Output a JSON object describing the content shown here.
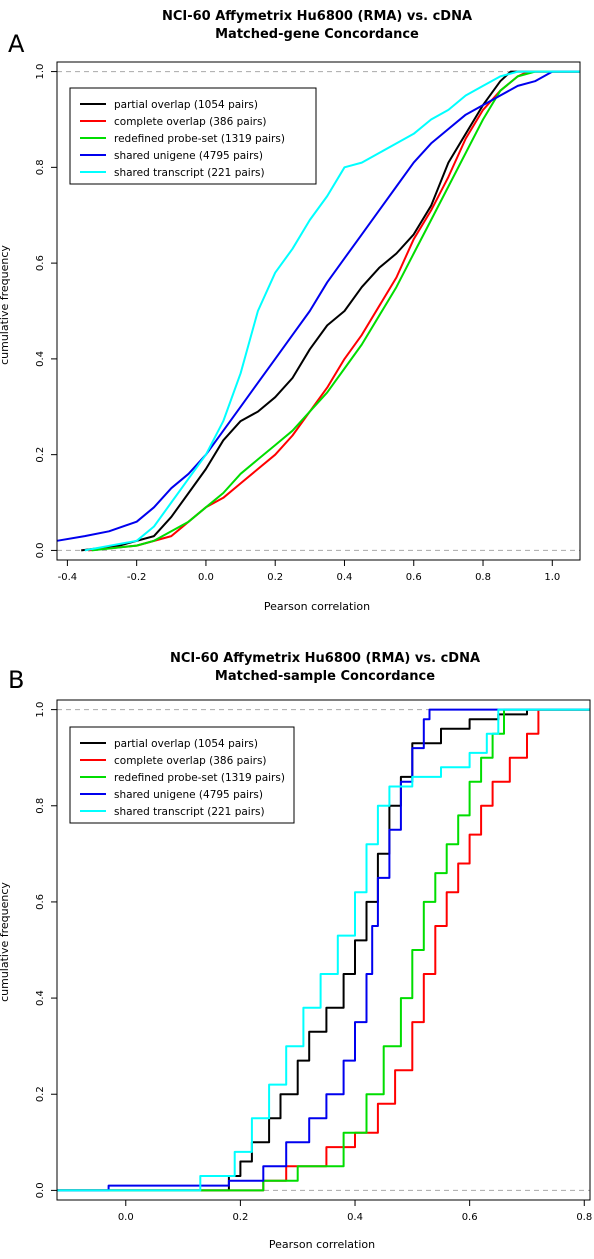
{
  "chart_data": [
    {
      "type": "line",
      "panel_letter": "A",
      "title": "NCI-60 Affymetrix Hu6800 (RMA) vs. cDNA",
      "subtitle": "Matched-gene Concordance",
      "xlabel": "Pearson correlation",
      "ylabel": "cumulative frequency",
      "xlim": [
        -0.43,
        1.08
      ],
      "ylim": [
        -0.02,
        1.02
      ],
      "x_ticks": [
        -0.4,
        -0.2,
        0.0,
        0.2,
        0.4,
        0.6,
        0.8,
        1.0
      ],
      "x_tick_labels": [
        "-0.4",
        "-0.2",
        "0.0",
        "0.2",
        "0.4",
        "0.6",
        "0.8",
        "1.0"
      ],
      "y_ticks": [
        0.0,
        0.2,
        0.4,
        0.6,
        0.8,
        1.0
      ],
      "y_tick_labels": [
        "0.0",
        "0.2",
        "0.4",
        "0.6",
        "0.8",
        "1.0"
      ],
      "reference_lines": [
        0,
        1
      ],
      "legend_position": "top-left",
      "series": [
        {
          "name": "partial overlap (1054 pairs)",
          "color": "#000000",
          "step": false,
          "x": [
            -0.36,
            -0.25,
            -0.15,
            -0.1,
            -0.05,
            0.0,
            0.05,
            0.1,
            0.15,
            0.2,
            0.25,
            0.3,
            0.35,
            0.4,
            0.45,
            0.5,
            0.55,
            0.6,
            0.65,
            0.7,
            0.75,
            0.8,
            0.85,
            0.88,
            1.08
          ],
          "y": [
            0.0,
            0.01,
            0.03,
            0.07,
            0.12,
            0.17,
            0.23,
            0.27,
            0.29,
            0.32,
            0.36,
            0.42,
            0.47,
            0.5,
            0.55,
            0.59,
            0.62,
            0.66,
            0.72,
            0.81,
            0.87,
            0.93,
            0.98,
            1.0,
            1.0
          ]
        },
        {
          "name": "complete overlap (386 pairs)",
          "color": "#ff0000",
          "step": false,
          "x": [
            -0.34,
            -0.2,
            -0.1,
            -0.05,
            0.0,
            0.05,
            0.1,
            0.15,
            0.2,
            0.25,
            0.3,
            0.35,
            0.4,
            0.45,
            0.5,
            0.55,
            0.6,
            0.65,
            0.7,
            0.75,
            0.8,
            0.85,
            0.9,
            0.93,
            1.08
          ],
          "y": [
            0.0,
            0.01,
            0.03,
            0.06,
            0.09,
            0.11,
            0.14,
            0.17,
            0.2,
            0.24,
            0.29,
            0.34,
            0.4,
            0.45,
            0.51,
            0.57,
            0.65,
            0.71,
            0.78,
            0.86,
            0.92,
            0.96,
            0.99,
            1.0,
            1.0
          ]
        },
        {
          "name": "redefined probe-set (1319 pairs)",
          "color": "#00dd00",
          "step": false,
          "x": [
            -0.33,
            -0.2,
            -0.15,
            -0.1,
            -0.05,
            0.0,
            0.05,
            0.1,
            0.15,
            0.2,
            0.25,
            0.3,
            0.35,
            0.4,
            0.45,
            0.5,
            0.55,
            0.6,
            0.65,
            0.7,
            0.75,
            0.8,
            0.85,
            0.9,
            0.95,
            1.08
          ],
          "y": [
            0.0,
            0.01,
            0.02,
            0.04,
            0.06,
            0.09,
            0.12,
            0.16,
            0.19,
            0.22,
            0.25,
            0.29,
            0.33,
            0.38,
            0.43,
            0.49,
            0.55,
            0.62,
            0.69,
            0.76,
            0.83,
            0.9,
            0.96,
            0.99,
            1.0,
            1.0
          ]
        },
        {
          "name": "shared unigene (4795 pairs)",
          "color": "#0000ee",
          "step": false,
          "x": [
            -0.43,
            -0.35,
            -0.28,
            -0.2,
            -0.15,
            -0.1,
            -0.05,
            0.0,
            0.05,
            0.1,
            0.15,
            0.2,
            0.25,
            0.3,
            0.35,
            0.4,
            0.45,
            0.5,
            0.55,
            0.6,
            0.65,
            0.7,
            0.75,
            0.8,
            0.85,
            0.9,
            0.95,
            1.0,
            1.08
          ],
          "y": [
            0.02,
            0.03,
            0.04,
            0.06,
            0.09,
            0.13,
            0.16,
            0.2,
            0.25,
            0.3,
            0.35,
            0.4,
            0.45,
            0.5,
            0.56,
            0.61,
            0.66,
            0.71,
            0.76,
            0.81,
            0.85,
            0.88,
            0.91,
            0.93,
            0.95,
            0.97,
            0.98,
            1.0,
            1.0
          ]
        },
        {
          "name": "shared transcript  (221 pairs)",
          "color": "#00ffff",
          "step": false,
          "x": [
            -0.35,
            -0.2,
            -0.15,
            -0.1,
            -0.05,
            0.0,
            0.05,
            0.1,
            0.15,
            0.2,
            0.25,
            0.3,
            0.35,
            0.4,
            0.45,
            0.5,
            0.55,
            0.6,
            0.65,
            0.7,
            0.75,
            0.8,
            0.85,
            0.9,
            1.08
          ],
          "y": [
            0.0,
            0.02,
            0.05,
            0.1,
            0.15,
            0.2,
            0.27,
            0.37,
            0.5,
            0.58,
            0.63,
            0.69,
            0.74,
            0.8,
            0.81,
            0.83,
            0.85,
            0.87,
            0.9,
            0.92,
            0.95,
            0.97,
            0.99,
            1.0,
            1.0
          ]
        }
      ]
    },
    {
      "type": "line",
      "panel_letter": "B",
      "title": "NCI-60 Affymetrix Hu6800 (RMA) vs. cDNA",
      "subtitle": "Matched-sample Concordance",
      "xlabel": "Pearson correlation",
      "ylabel": "cumulative frequency",
      "xlim": [
        -0.12,
        0.81
      ],
      "ylim": [
        -0.02,
        1.02
      ],
      "x_ticks": [
        0.0,
        0.2,
        0.4,
        0.6,
        0.8
      ],
      "x_tick_labels": [
        "0.0",
        "0.2",
        "0.4",
        "0.6",
        "0.8"
      ],
      "y_ticks": [
        0.0,
        0.2,
        0.4,
        0.6,
        0.8,
        1.0
      ],
      "y_tick_labels": [
        "0.0",
        "0.2",
        "0.4",
        "0.6",
        "0.8",
        "1.0"
      ],
      "reference_lines": [
        0,
        1
      ],
      "legend_position": "top-left",
      "series": [
        {
          "name": "partial overlap (1054 pairs)",
          "color": "#000000",
          "step": true,
          "x": [
            -0.12,
            -0.03,
            0.01,
            0.18,
            0.2,
            0.22,
            0.25,
            0.27,
            0.3,
            0.32,
            0.35,
            0.38,
            0.4,
            0.42,
            0.44,
            0.46,
            0.48,
            0.5,
            0.55,
            0.6,
            0.65,
            0.7,
            0.81
          ],
          "y": [
            0.0,
            0.0,
            0.0,
            0.03,
            0.06,
            0.1,
            0.15,
            0.2,
            0.27,
            0.33,
            0.38,
            0.45,
            0.52,
            0.6,
            0.7,
            0.8,
            0.86,
            0.93,
            0.96,
            0.98,
            0.99,
            1.0,
            1.0
          ]
        },
        {
          "name": "complete overlap (386 pairs)",
          "color": "#ff0000",
          "step": true,
          "x": [
            -0.12,
            0.24,
            0.28,
            0.35,
            0.4,
            0.44,
            0.47,
            0.5,
            0.52,
            0.54,
            0.56,
            0.58,
            0.6,
            0.62,
            0.64,
            0.67,
            0.7,
            0.72,
            0.81
          ],
          "y": [
            0.0,
            0.02,
            0.05,
            0.09,
            0.12,
            0.18,
            0.25,
            0.35,
            0.45,
            0.55,
            0.62,
            0.68,
            0.74,
            0.8,
            0.85,
            0.9,
            0.95,
            1.0,
            1.0
          ]
        },
        {
          "name": "redefined probe-set (1319 pairs)",
          "color": "#00dd00",
          "step": true,
          "x": [
            -0.12,
            0.24,
            0.3,
            0.38,
            0.42,
            0.45,
            0.48,
            0.5,
            0.52,
            0.54,
            0.56,
            0.58,
            0.6,
            0.62,
            0.64,
            0.66,
            0.81
          ],
          "y": [
            0.0,
            0.02,
            0.05,
            0.12,
            0.2,
            0.3,
            0.4,
            0.5,
            0.6,
            0.66,
            0.72,
            0.78,
            0.85,
            0.9,
            0.95,
            1.0,
            1.0
          ]
        },
        {
          "name": "shared unigene (4795 pairs)",
          "color": "#0000ee",
          "step": true,
          "x": [
            -0.12,
            -0.03,
            0.18,
            0.24,
            0.28,
            0.32,
            0.35,
            0.38,
            0.4,
            0.42,
            0.43,
            0.44,
            0.46,
            0.48,
            0.5,
            0.52,
            0.53,
            0.81
          ],
          "y": [
            0.0,
            0.01,
            0.02,
            0.05,
            0.1,
            0.15,
            0.2,
            0.27,
            0.35,
            0.45,
            0.55,
            0.65,
            0.75,
            0.85,
            0.92,
            0.98,
            1.0,
            1.0
          ]
        },
        {
          "name": "shared transcript  (221 pairs)",
          "color": "#00ffff",
          "step": true,
          "x": [
            -0.12,
            0.13,
            0.19,
            0.22,
            0.25,
            0.28,
            0.31,
            0.34,
            0.37,
            0.4,
            0.42,
            0.44,
            0.46,
            0.5,
            0.55,
            0.6,
            0.63,
            0.65,
            0.81
          ],
          "y": [
            0.0,
            0.03,
            0.08,
            0.15,
            0.22,
            0.3,
            0.38,
            0.45,
            0.53,
            0.62,
            0.72,
            0.8,
            0.84,
            0.86,
            0.88,
            0.91,
            0.95,
            1.0,
            1.0
          ]
        }
      ]
    }
  ]
}
